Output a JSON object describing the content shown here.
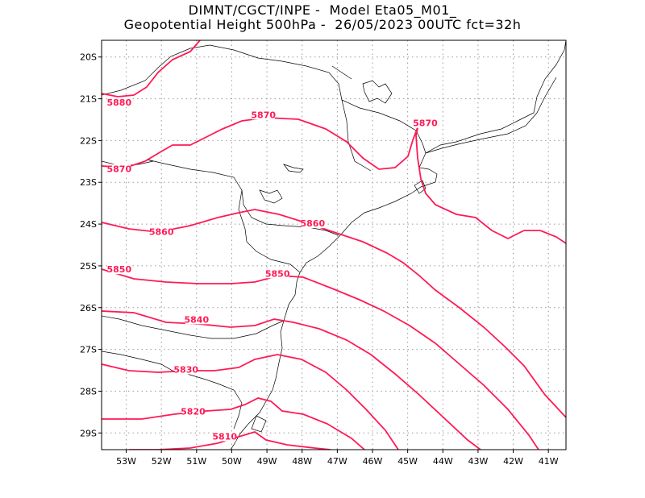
{
  "title": {
    "line1": "DIMNT/CGCT/INPE -  Model Eta05_M01_",
    "line2": "Geopotential Height 500hPa -  26/05/2023 00UTC fct=32h"
  },
  "map": {
    "x_ticks": [
      "53W",
      "52W",
      "51W",
      "50W",
      "49W",
      "48W",
      "47W",
      "46W",
      "45W",
      "44W",
      "43W",
      "42W",
      "41W"
    ],
    "y_ticks": [
      "20S",
      "21S",
      "22S",
      "23S",
      "24S",
      "25S",
      "26S",
      "27S",
      "28S",
      "29S"
    ],
    "lon_range": [
      -53.7,
      -40.5
    ],
    "lat_range": [
      -29.4,
      -19.6
    ],
    "contour_color": "#ff1a55",
    "coastline_color": "#000000",
    "grid_color": "#999999",
    "units": "gpm"
  },
  "chart_data": {
    "type": "contour",
    "variable": "Geopotential Height 500hPa",
    "levels": [
      5810,
      5820,
      5830,
      5840,
      5850,
      5860,
      5870,
      5880
    ],
    "contour_labels": [
      {
        "text": "5880",
        "lon": -53.2,
        "lat": -21.1
      },
      {
        "text": "5870",
        "lon": -49.1,
        "lat": -21.4
      },
      {
        "text": "5870",
        "lon": -44.5,
        "lat": -21.6
      },
      {
        "text": "5870",
        "lon": -53.2,
        "lat": -22.7
      },
      {
        "text": "5860",
        "lon": -52.0,
        "lat": -24.2
      },
      {
        "text": "5860",
        "lon": -47.7,
        "lat": -24.0
      },
      {
        "text": "5850",
        "lon": -53.2,
        "lat": -25.1
      },
      {
        "text": "5850",
        "lon": -48.7,
        "lat": -25.2
      },
      {
        "text": "5840",
        "lon": -51.0,
        "lat": -26.3
      },
      {
        "text": "5830",
        "lon": -51.3,
        "lat": -27.5
      },
      {
        "text": "5820",
        "lon": -51.1,
        "lat": -28.5
      },
      {
        "text": "5810",
        "lon": -50.2,
        "lat": -29.1
      }
    ]
  }
}
